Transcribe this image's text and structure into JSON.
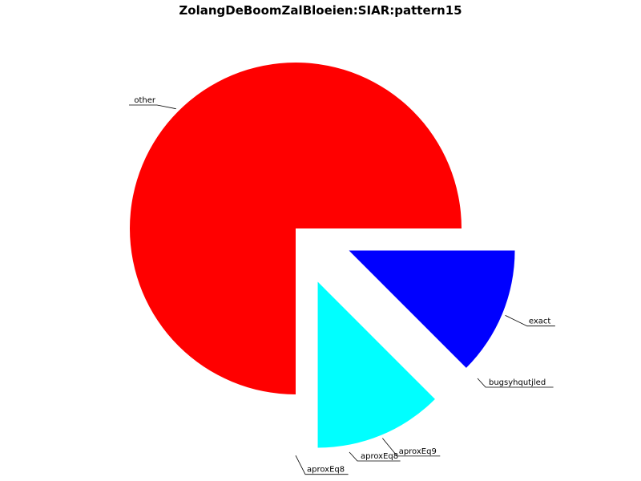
{
  "chart_data": {
    "type": "pie",
    "title": "ZolangDeBoomZalBloeien:SIAR:pattern15",
    "start_angle_deg": 0,
    "direction": "clockwise",
    "slices": [
      {
        "label": "exact",
        "value": 0.125,
        "color": "#0000ff",
        "exploded": true
      },
      {
        "label": "",
        "value": 0.0,
        "color": "#ff00ff",
        "exploded": true
      },
      {
        "label": "",
        "value": 0.0,
        "color": "#00ff00",
        "exploded": true
      },
      {
        "label": "",
        "value": 0.0,
        "color": "#ffff00",
        "exploded": true
      },
      {
        "label": "",
        "value": 0.0,
        "color": "#000000",
        "exploded": true
      },
      {
        "label": "aproxEq9",
        "value": 0.125,
        "color": "#00ffff",
        "exploded": true
      },
      {
        "label": "aproxEq8",
        "value": 0.0,
        "color": "#ff8000",
        "exploded": true
      },
      {
        "label": "other",
        "value": 0.75,
        "color": "#ff0000",
        "exploded": false
      }
    ],
    "overlapping_labels": [
      {
        "near_slice": "exact",
        "text": "bugsyhqutjled"
      },
      {
        "near_slice": "aproxEq9",
        "text": "aproxEq8"
      }
    ]
  }
}
